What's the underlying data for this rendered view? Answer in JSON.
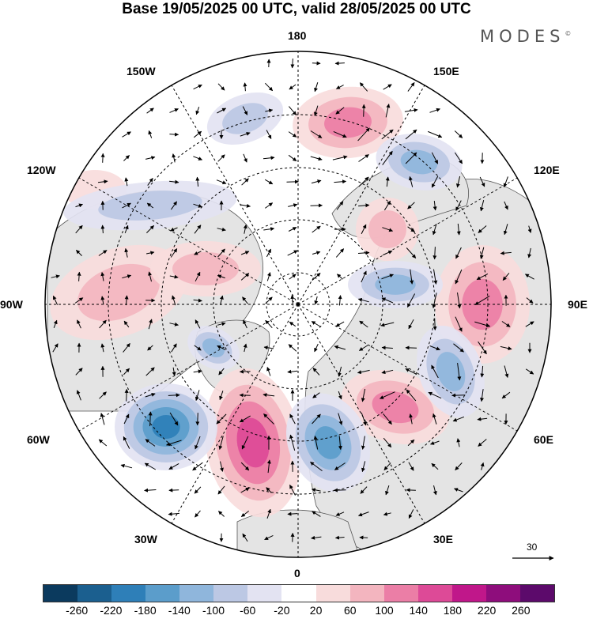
{
  "title": "Base 19/05/2025 00 UTC, valid 28/05/2025 00 UTC",
  "logo": "MODES",
  "logo_mark": "©",
  "longitude_labels": {
    "top": "180",
    "bottom": "0",
    "left": "90W",
    "right": "90E",
    "upper_left_150": "150W",
    "upper_left_120": "120W",
    "lower_left_60": "60W",
    "lower_left_30": "30W",
    "upper_right_150": "150E",
    "upper_right_120": "120E",
    "lower_right_60": "60E",
    "lower_right_30": "30E"
  },
  "reference_vector": {
    "value": "30"
  },
  "colorbar": {
    "colors": [
      "#0b3a5e",
      "#1b5f8f",
      "#2e7fb8",
      "#5b9dcb",
      "#8fb6dc",
      "#bcc8e4",
      "#e3e3f2",
      "#ffffff",
      "#f8dcdc",
      "#f3b5bf",
      "#eb7ea6",
      "#dd4a97",
      "#c0178a",
      "#8e0d7c",
      "#5c0a6b"
    ],
    "tick_labels": [
      "-260",
      "-220",
      "-180",
      "-140",
      "-100",
      "-60",
      "-20",
      "20",
      "60",
      "100",
      "140",
      "180",
      "220",
      "260"
    ]
  },
  "map_colors": {
    "land": "#e4e4e4",
    "pole_cap": "#ffffff",
    "outline": "#333333",
    "arrow": "#000000"
  },
  "anomaly_features": [
    {
      "kind": "high",
      "longitude_label": "150E-180",
      "intensity": "140"
    },
    {
      "kind": "high",
      "longitude_label": "90E",
      "intensity": "140"
    },
    {
      "kind": "high",
      "longitude_label": "60E",
      "intensity": "140"
    },
    {
      "kind": "high",
      "longitude_label": "30W-0",
      "intensity": "180"
    },
    {
      "kind": "low",
      "longitude_label": "60W",
      "intensity": "-220"
    },
    {
      "kind": "low",
      "longitude_label": "0-30E",
      "intensity": "-180"
    },
    {
      "kind": "low",
      "longitude_label": "60E-90E",
      "intensity": "-100"
    },
    {
      "kind": "low",
      "longitude_label": "120E-150E",
      "intensity": "-100"
    }
  ]
}
